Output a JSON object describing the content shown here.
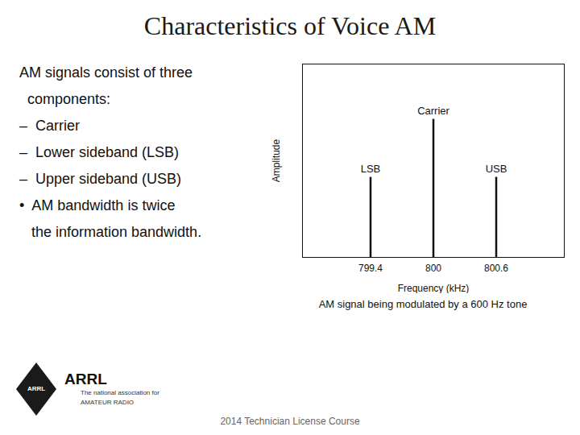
{
  "chart_data": {
    "type": "stem",
    "title": "Characteristics of Voice AM",
    "x": [
      799.4,
      800.0,
      800.6
    ],
    "values": [
      0.58,
      1.0,
      0.58
    ],
    "annotations": [
      {
        "x": 799.4,
        "y": 0.58,
        "text": "LSB"
      },
      {
        "x": 800.6,
        "y": 0.58,
        "text": "USB"
      },
      {
        "x": 800.0,
        "y": 1.0,
        "text": "Carrier"
      }
    ],
    "xlabel": "Frequency (kHz)",
    "ylabel": "Amplitude",
    "xlim": [
      798.75,
      801.25
    ],
    "xticks": [
      799.4,
      800,
      800.6
    ],
    "ylim": [
      0,
      1.4
    ],
    "tick_labels": "x",
    "grid": false,
    "bullets": [
      "AM signals consist of three",
      "  components:",
      "–  Carrier",
      "–  Lower sideband (LSB)",
      "–  Upper sideband (USB)",
      "•  AM bandwidth is twice",
      "   the information bandwidth."
    ],
    "caption": "AM signal being modulated by a 600 Hz tone",
    "footer": "2014 Technician License Course",
    "logo": {
      "mark": "ARRL",
      "name": "ARRL",
      "tagline": "The national association for\nAMATEUR RADIO"
    }
  }
}
